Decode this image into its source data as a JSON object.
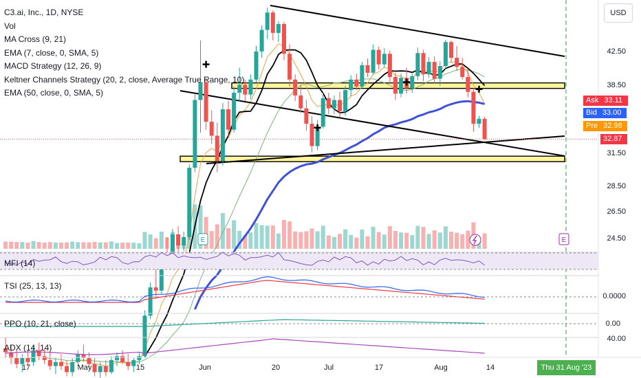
{
  "toolbar": {
    "currency_label": "USD"
  },
  "legend": {
    "title": "C3.ai, Inc., 1D, NYSE",
    "indicators": [
      "Vol",
      "MA Cross (9, 21)",
      "EMA (7, close, 0, SMA, 5)",
      "MACD Strategy (12, 26, 9)",
      "Keltner Channels Strategy (20, 2, close, Average True Range, 10)",
      "EMA (50, close, 0, SMA, 5)"
    ]
  },
  "subpanes": {
    "mfi": "MFI (14)",
    "tsi": "TSI (25, 13, 13)",
    "ppo": "PPO (10, 21, close)",
    "adx": "ADX (14, 14)"
  },
  "quotes": {
    "ask_label": "Ask",
    "ask_value": "33.11",
    "bid_label": "Bid",
    "bid_value": "33.00",
    "pre_label": "Pre",
    "pre_value": "32.98",
    "last_value": "32.87"
  },
  "colors": {
    "up": "#26a69a",
    "down": "#ef5350",
    "ask": "#f23645",
    "bid": "#2962ff",
    "pre": "#ff9800",
    "ema50": "#3f51d6",
    "ma_fast": "#000000",
    "ma_slow": "#7cb47c",
    "ema7": "#f5a03c",
    "zone_fill": "#fff59d",
    "mfi_fill": "#ede7f6",
    "mfi_line": "#7e57c2",
    "tsi": "#f23645",
    "tsi_signal": "#2962ff",
    "ppo": "#26a69a",
    "adx": "#ab47bc",
    "marker_line": "#4caf50"
  },
  "chart_data": {
    "type": "candlestick",
    "title": "C3.ai, Inc., 1D, NYSE",
    "price_axis": {
      "ticks": [
        "42.50",
        "38.50",
        "31.50",
        "28.50",
        "26.50",
        "24.50"
      ],
      "scale": "log"
    },
    "sub_axis_ticks": {
      "tsi": "0.0000",
      "ppo": "0.00",
      "adx": "40.00"
    },
    "x_tick_labels": [
      "17",
      "May",
      "15",
      "Jun",
      "20",
      "Jul",
      "17",
      "Aug",
      "14"
    ],
    "highlighted_date": "Thu 31 Aug '23",
    "last_price": 32.87,
    "candles": [
      {
        "d": "Apr 10",
        "o": 17.7,
        "h": 18.3,
        "l": 17.2,
        "c": 17.5
      },
      {
        "d": "Apr 11",
        "o": 17.5,
        "h": 17.9,
        "l": 16.9,
        "c": 17.2
      },
      {
        "d": "Apr 12",
        "o": 17.2,
        "h": 17.6,
        "l": 16.7,
        "c": 16.9
      },
      {
        "d": "Apr 13",
        "o": 16.9,
        "h": 17.4,
        "l": 16.5,
        "c": 17.2
      },
      {
        "d": "Apr 14",
        "o": 17.2,
        "h": 17.6,
        "l": 16.8,
        "c": 17.0
      },
      {
        "d": "Apr 17",
        "o": 17.0,
        "h": 17.8,
        "l": 16.8,
        "c": 17.6
      },
      {
        "d": "Apr 18",
        "o": 17.6,
        "h": 18.0,
        "l": 17.1,
        "c": 17.3
      },
      {
        "d": "Apr 19",
        "o": 17.3,
        "h": 17.7,
        "l": 16.9,
        "c": 17.1
      },
      {
        "d": "Apr 20",
        "o": 17.1,
        "h": 17.5,
        "l": 16.6,
        "c": 16.8
      },
      {
        "d": "Apr 21",
        "o": 16.8,
        "h": 17.2,
        "l": 16.4,
        "c": 17.0
      },
      {
        "d": "Apr 24",
        "o": 17.0,
        "h": 17.4,
        "l": 16.6,
        "c": 16.8
      },
      {
        "d": "Apr 25",
        "o": 16.8,
        "h": 17.1,
        "l": 16.3,
        "c": 16.5
      },
      {
        "d": "Apr 26",
        "o": 16.5,
        "h": 17.2,
        "l": 16.3,
        "c": 17.0
      },
      {
        "d": "Apr 27",
        "o": 17.0,
        "h": 17.6,
        "l": 16.8,
        "c": 17.4
      },
      {
        "d": "Apr 28",
        "o": 17.4,
        "h": 17.9,
        "l": 17.0,
        "c": 17.2
      },
      {
        "d": "May 1",
        "o": 17.2,
        "h": 17.5,
        "l": 16.7,
        "c": 16.9
      },
      {
        "d": "May 2",
        "o": 16.9,
        "h": 17.2,
        "l": 16.3,
        "c": 16.5
      },
      {
        "d": "May 3",
        "o": 16.5,
        "h": 17.0,
        "l": 16.2,
        "c": 16.8
      },
      {
        "d": "May 4",
        "o": 16.8,
        "h": 17.1,
        "l": 16.3,
        "c": 16.5
      },
      {
        "d": "May 5",
        "o": 16.5,
        "h": 17.3,
        "l": 16.4,
        "c": 17.1
      },
      {
        "d": "May 8",
        "o": 17.1,
        "h": 17.5,
        "l": 16.8,
        "c": 17.3
      },
      {
        "d": "May 9",
        "o": 17.3,
        "h": 17.6,
        "l": 16.9,
        "c": 17.0
      },
      {
        "d": "May 10",
        "o": 17.0,
        "h": 17.4,
        "l": 16.6,
        "c": 16.8
      },
      {
        "d": "May 11",
        "o": 16.8,
        "h": 17.2,
        "l": 16.5,
        "c": 17.1
      },
      {
        "d": "May 12",
        "o": 17.1,
        "h": 17.5,
        "l": 16.9,
        "c": 17.3
      },
      {
        "d": "May 15",
        "o": 17.3,
        "h": 19.8,
        "l": 17.2,
        "c": 19.5
      },
      {
        "d": "May 16",
        "o": 19.5,
        "h": 21.5,
        "l": 19.3,
        "c": 21.2
      },
      {
        "d": "May 17",
        "o": 21.2,
        "h": 22.6,
        "l": 20.5,
        "c": 21.0
      },
      {
        "d": "May 18",
        "o": 21.0,
        "h": 23.5,
        "l": 20.8,
        "c": 23.2
      },
      {
        "d": "May 19",
        "o": 23.2,
        "h": 24.6,
        "l": 22.4,
        "c": 22.8
      },
      {
        "d": "May 22",
        "o": 22.8,
        "h": 25.2,
        "l": 22.5,
        "c": 24.8
      },
      {
        "d": "May 23",
        "o": 24.8,
        "h": 25.4,
        "l": 23.5,
        "c": 24.0
      },
      {
        "d": "May 24",
        "o": 24.0,
        "h": 25.0,
        "l": 23.6,
        "c": 24.6
      },
      {
        "d": "May 25",
        "o": 24.6,
        "h": 30.5,
        "l": 24.4,
        "c": 30.2
      },
      {
        "d": "May 26",
        "o": 30.2,
        "h": 37.5,
        "l": 29.8,
        "c": 36.9
      },
      {
        "d": "May 30",
        "o": 36.9,
        "h": 44.0,
        "l": 33.5,
        "c": 38.9
      },
      {
        "d": "May 31",
        "o": 38.9,
        "h": 39.4,
        "l": 33.8,
        "c": 34.6
      },
      {
        "d": "Jun 1",
        "o": 34.6,
        "h": 35.8,
        "l": 32.4,
        "c": 33.2
      },
      {
        "d": "Jun 2",
        "o": 33.2,
        "h": 34.5,
        "l": 29.8,
        "c": 30.8
      },
      {
        "d": "Jun 5",
        "o": 30.8,
        "h": 36.6,
        "l": 30.4,
        "c": 35.9
      },
      {
        "d": "Jun 6",
        "o": 35.9,
        "h": 36.8,
        "l": 33.0,
        "c": 33.8
      },
      {
        "d": "Jun 7",
        "o": 33.8,
        "h": 38.4,
        "l": 33.5,
        "c": 37.7
      },
      {
        "d": "Jun 8",
        "o": 37.7,
        "h": 40.6,
        "l": 36.8,
        "c": 38.6
      },
      {
        "d": "Jun 9",
        "o": 38.6,
        "h": 39.2,
        "l": 36.8,
        "c": 37.5
      },
      {
        "d": "Jun 12",
        "o": 37.5,
        "h": 39.8,
        "l": 37.0,
        "c": 39.2
      },
      {
        "d": "Jun 13",
        "o": 39.2,
        "h": 43.3,
        "l": 38.9,
        "c": 42.6
      },
      {
        "d": "Jun 14",
        "o": 42.6,
        "h": 46.0,
        "l": 41.8,
        "c": 45.4
      },
      {
        "d": "Jun 15",
        "o": 45.4,
        "h": 48.5,
        "l": 44.2,
        "c": 47.8
      },
      {
        "d": "Jun 16",
        "o": 47.8,
        "h": 48.1,
        "l": 44.0,
        "c": 45.0
      },
      {
        "d": "Jun 20",
        "o": 45.0,
        "h": 46.6,
        "l": 43.8,
        "c": 46.2
      },
      {
        "d": "Jun 21",
        "o": 46.2,
        "h": 46.5,
        "l": 41.5,
        "c": 42.3
      },
      {
        "d": "Jun 22",
        "o": 42.3,
        "h": 43.5,
        "l": 38.4,
        "c": 39.2
      },
      {
        "d": "Jun 23",
        "o": 39.2,
        "h": 39.8,
        "l": 36.8,
        "c": 37.4
      },
      {
        "d": "Jun 26",
        "o": 37.4,
        "h": 38.6,
        "l": 35.5,
        "c": 36.0
      },
      {
        "d": "Jun 27",
        "o": 36.0,
        "h": 36.9,
        "l": 33.7,
        "c": 34.4
      },
      {
        "d": "Jun 28",
        "o": 34.4,
        "h": 35.2,
        "l": 31.6,
        "c": 32.2
      },
      {
        "d": "Jun 29",
        "o": 32.2,
        "h": 34.8,
        "l": 31.8,
        "c": 34.1
      },
      {
        "d": "Jun 30",
        "o": 34.1,
        "h": 37.8,
        "l": 33.9,
        "c": 37.1
      },
      {
        "d": "Jul 3",
        "o": 37.1,
        "h": 37.7,
        "l": 35.4,
        "c": 36.0
      },
      {
        "d": "Jul 5",
        "o": 36.0,
        "h": 37.4,
        "l": 35.4,
        "c": 36.9
      },
      {
        "d": "Jul 6",
        "o": 36.9,
        "h": 37.8,
        "l": 35.1,
        "c": 35.7
      },
      {
        "d": "Jul 7",
        "o": 35.7,
        "h": 38.5,
        "l": 35.2,
        "c": 38.0
      },
      {
        "d": "Jul 10",
        "o": 38.0,
        "h": 39.7,
        "l": 37.3,
        "c": 39.2
      },
      {
        "d": "Jul 11",
        "o": 39.2,
        "h": 39.9,
        "l": 38.0,
        "c": 38.4
      },
      {
        "d": "Jul 12",
        "o": 38.4,
        "h": 41.3,
        "l": 38.2,
        "c": 40.9
      },
      {
        "d": "Jul 13",
        "o": 40.9,
        "h": 41.7,
        "l": 39.5,
        "c": 40.0
      },
      {
        "d": "Jul 14",
        "o": 40.0,
        "h": 43.5,
        "l": 39.8,
        "c": 42.8
      },
      {
        "d": "Jul 17",
        "o": 42.8,
        "h": 43.2,
        "l": 40.4,
        "c": 41.0
      },
      {
        "d": "Jul 18",
        "o": 41.0,
        "h": 43.0,
        "l": 40.6,
        "c": 42.3
      },
      {
        "d": "Jul 19",
        "o": 42.3,
        "h": 42.7,
        "l": 38.8,
        "c": 39.5
      },
      {
        "d": "Jul 20",
        "o": 39.5,
        "h": 40.0,
        "l": 36.9,
        "c": 37.6
      },
      {
        "d": "Jul 21",
        "o": 37.6,
        "h": 39.9,
        "l": 37.2,
        "c": 39.4
      },
      {
        "d": "Jul 24",
        "o": 39.4,
        "h": 40.6,
        "l": 37.6,
        "c": 38.2
      },
      {
        "d": "Jul 25",
        "o": 38.2,
        "h": 39.9,
        "l": 37.7,
        "c": 39.6
      },
      {
        "d": "Jul 26",
        "o": 39.6,
        "h": 43.1,
        "l": 39.1,
        "c": 42.4
      },
      {
        "d": "Jul 27",
        "o": 42.4,
        "h": 42.8,
        "l": 39.0,
        "c": 39.8
      },
      {
        "d": "Jul 28",
        "o": 39.8,
        "h": 41.9,
        "l": 39.4,
        "c": 41.3
      },
      {
        "d": "Jul 31",
        "o": 41.3,
        "h": 42.0,
        "l": 38.8,
        "c": 39.3
      },
      {
        "d": "Aug 1",
        "o": 39.3,
        "h": 41.4,
        "l": 38.5,
        "c": 40.8
      },
      {
        "d": "Aug 2",
        "o": 40.8,
        "h": 44.1,
        "l": 40.4,
        "c": 43.8
      },
      {
        "d": "Aug 3",
        "o": 43.8,
        "h": 44.0,
        "l": 41.2,
        "c": 41.8
      },
      {
        "d": "Aug 4",
        "o": 41.8,
        "h": 43.3,
        "l": 40.2,
        "c": 40.7
      },
      {
        "d": "Aug 7",
        "o": 40.7,
        "h": 41.8,
        "l": 39.2,
        "c": 39.5
      },
      {
        "d": "Aug 8",
        "o": 39.5,
        "h": 40.5,
        "l": 37.2,
        "c": 37.8
      },
      {
        "d": "Aug 9",
        "o": 37.8,
        "h": 38.2,
        "l": 33.6,
        "c": 34.4
      },
      {
        "d": "Aug 10",
        "o": 34.4,
        "h": 35.2,
        "l": 34.0,
        "c": 34.9
      },
      {
        "d": "Aug 11",
        "o": 34.9,
        "h": 35.1,
        "l": 32.8,
        "c": 32.87
      }
    ]
  }
}
